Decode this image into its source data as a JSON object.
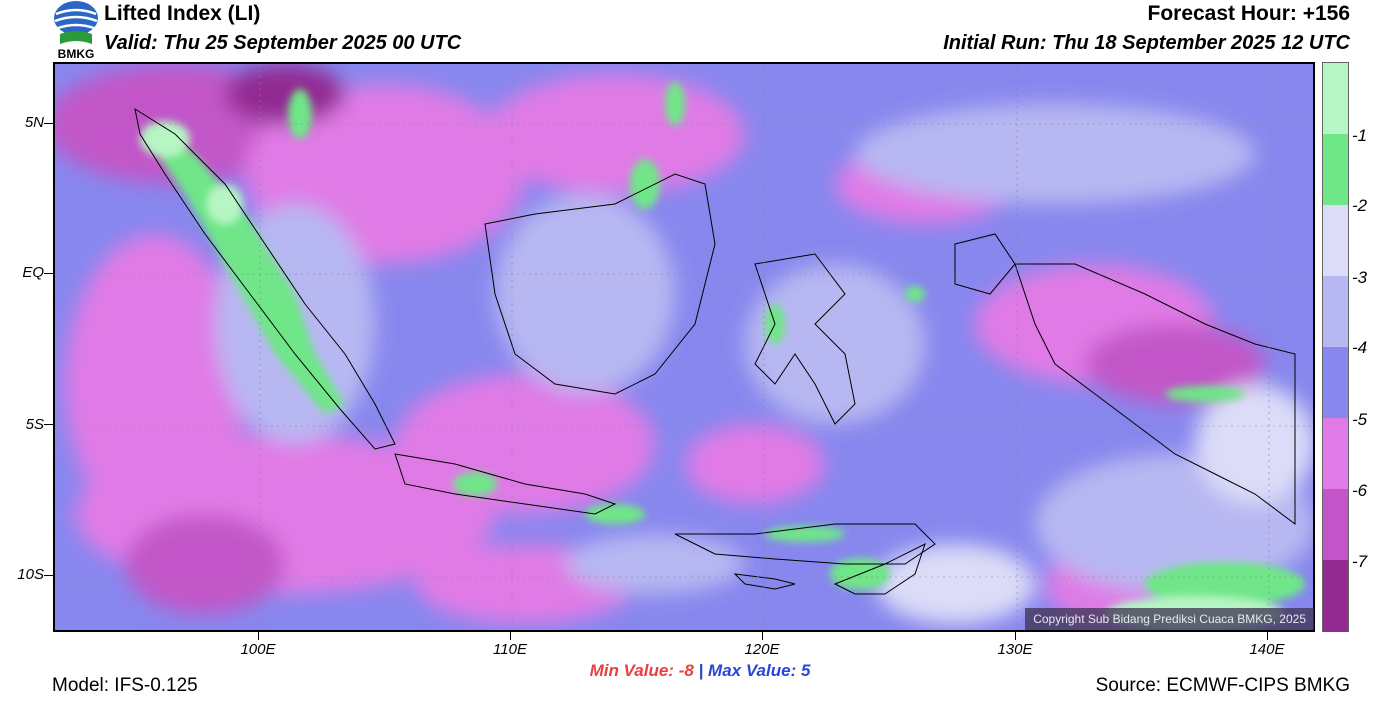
{
  "header": {
    "title": "Lifted Index (LI)",
    "valid": "Valid: Thu 25 September 2025 00 UTC",
    "forecast_hour": "Forecast Hour: +156",
    "initial_run": "Initial Run: Thu 18 September 2025 12 UTC"
  },
  "logo": {
    "text": "BMKG"
  },
  "map": {
    "lat_labels": [
      "5N",
      "EQ",
      "5S",
      "10S"
    ],
    "lon_labels": [
      "100E",
      "110E",
      "120E",
      "130E",
      "140E"
    ],
    "copyright": "Copyright Sub Bidang Prediksi Cuaca BMKG, 2025"
  },
  "colorbar": {
    "labels": [
      "-1",
      "-2",
      "-3",
      "-4",
      "-5",
      "-6",
      "-7"
    ],
    "colors": [
      "#b6f5c4",
      "#6fe688",
      "#dcdcf8",
      "#b7b7f2",
      "#8787ee",
      "#e07ae6",
      "#c256c8",
      "#922a92"
    ]
  },
  "stats": {
    "min_label": "Min Value:",
    "min_value": "-8",
    "separator": "|",
    "max_label": "Max Value:",
    "max_value": "5"
  },
  "footer": {
    "model": "Model: IFS-0.125",
    "source": "Source: ECMWF-CIPS BMKG"
  }
}
